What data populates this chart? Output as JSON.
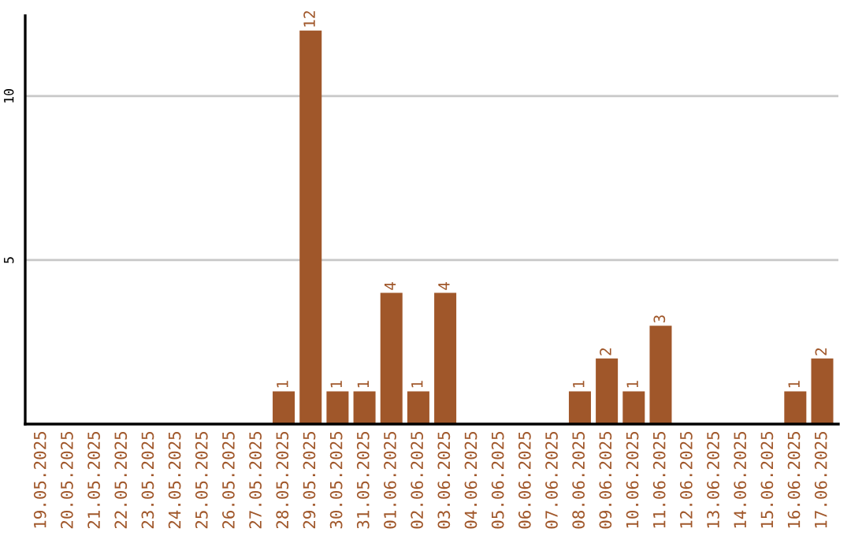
{
  "chart_data": {
    "type": "bar",
    "categories": [
      "19.05.2025",
      "20.05.2025",
      "21.05.2025",
      "22.05.2025",
      "23.05.2025",
      "24.05.2025",
      "25.05.2025",
      "26.05.2025",
      "27.05.2025",
      "28.05.2025",
      "29.05.2025",
      "30.05.2025",
      "31.05.2025",
      "01.06.2025",
      "02.06.2025",
      "03.06.2025",
      "04.06.2025",
      "05.06.2025",
      "06.06.2025",
      "07.06.2025",
      "08.06.2025",
      "09.06.2025",
      "10.06.2025",
      "11.06.2025",
      "12.06.2025",
      "13.06.2025",
      "14.06.2025",
      "15.06.2025",
      "16.06.2025",
      "17.06.2025"
    ],
    "values": [
      0,
      0,
      0,
      0,
      0,
      0,
      0,
      0,
      0,
      1,
      12,
      1,
      1,
      4,
      1,
      4,
      0,
      0,
      0,
      0,
      1,
      2,
      1,
      3,
      0,
      0,
      0,
      0,
      1,
      2
    ],
    "value_labels": [
      null,
      null,
      null,
      null,
      null,
      null,
      null,
      null,
      null,
      "1",
      "12",
      "1",
      "1",
      "4",
      "1",
      "4",
      null,
      null,
      null,
      null,
      "1",
      "2",
      "1",
      "3",
      null,
      null,
      null,
      null,
      "1",
      "2"
    ],
    "color": "#a0572a",
    "ylim": [
      0,
      12.45
    ],
    "yticks": [
      5,
      10
    ],
    "grid": "y"
  }
}
